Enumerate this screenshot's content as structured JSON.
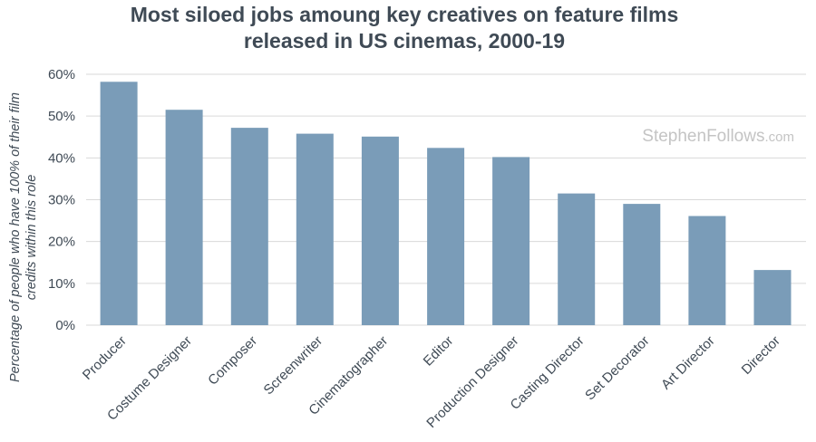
{
  "chart_data": {
    "type": "bar",
    "title": [
      "Most siloed jobs amoung key creatives on feature films",
      "released in US cinemas, 2000-19"
    ],
    "ylabel": [
      "Percentage of people who have 100% of their film",
      "credits within this role"
    ],
    "xlabel": "",
    "categories": [
      "Producer",
      "Costume Designer",
      "Composer",
      "Screenwriter",
      "Cinematographer",
      "Editor",
      "Production Designer",
      "Casting Director",
      "Set Decorator",
      "Art Director",
      "Director"
    ],
    "values": [
      58.2,
      51.5,
      47.2,
      45.8,
      45.1,
      42.4,
      40.2,
      31.5,
      29.0,
      26.1,
      13.2
    ],
    "ylim": [
      0,
      60
    ],
    "yticks": [
      0,
      10,
      20,
      30,
      40,
      50,
      60
    ],
    "ytick_labels": [
      "0%",
      "10%",
      "20%",
      "30%",
      "40%",
      "50%",
      "60%"
    ],
    "grid": true,
    "legend": "none",
    "colors": {
      "bar": "#7a9cb8",
      "text": "#3f4a55",
      "grid": "#d9d9d9",
      "watermark": "#c4c4c4"
    }
  },
  "watermark": {
    "main": "StephenFollows",
    "suffix": ".com"
  }
}
